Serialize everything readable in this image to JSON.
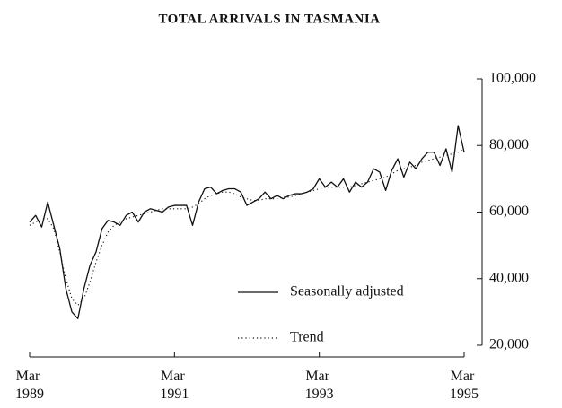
{
  "chart_data": {
    "type": "line",
    "title": "TOTAL ARRIVALS IN TASMANIA",
    "categories": [
      "Mar 1989",
      null,
      null,
      null,
      null,
      null,
      null,
      null,
      null,
      null,
      null,
      null,
      null,
      null,
      null,
      null,
      null,
      null,
      null,
      null,
      null,
      null,
      null,
      null,
      "Mar 1991",
      null,
      null,
      null,
      null,
      null,
      null,
      null,
      null,
      null,
      null,
      null,
      null,
      null,
      null,
      null,
      null,
      null,
      null,
      null,
      null,
      null,
      null,
      null,
      "Mar 1993",
      null,
      null,
      null,
      null,
      null,
      null,
      null,
      null,
      null,
      null,
      null,
      null,
      null,
      null,
      null,
      null,
      null,
      null,
      null,
      null,
      null,
      null,
      null,
      "Mar 1995"
    ],
    "series": [
      {
        "name": "Seasonally adjusted",
        "color": "#111111",
        "style": "solid",
        "values": [
          57000,
          59000,
          55500,
          63000,
          56000,
          49000,
          37000,
          30000,
          28000,
          37000,
          44000,
          48000,
          55000,
          57500,
          57000,
          56000,
          59000,
          60000,
          57000,
          60000,
          61000,
          60500,
          60000,
          61500,
          62000,
          62000,
          62000,
          56000,
          63000,
          67000,
          67500,
          65500,
          66500,
          67000,
          67000,
          66000,
          62000,
          63000,
          64000,
          66000,
          64000,
          65000,
          64000,
          65000,
          65500,
          65500,
          66000,
          67000,
          70000,
          67500,
          69000,
          67500,
          70000,
          66000,
          69000,
          67500,
          69000,
          73000,
          72000,
          66500,
          72500,
          76000,
          70500,
          75000,
          73000,
          76000,
          78000,
          78000,
          74000,
          79000,
          72000,
          86000,
          78000
        ]
      },
      {
        "name": "Trend",
        "color": "#111111",
        "style": "dotted",
        "values": [
          56000,
          57000,
          58000,
          58000,
          55000,
          48000,
          40000,
          34000,
          32000,
          34000,
          39000,
          45000,
          50000,
          54000,
          56000,
          57000,
          58000,
          58500,
          59000,
          59500,
          60000,
          60500,
          61000,
          61000,
          61000,
          61000,
          61000,
          61500,
          62500,
          64000,
          65000,
          65500,
          66000,
          66000,
          65500,
          64500,
          64000,
          63500,
          63500,
          64000,
          64000,
          64000,
          64500,
          64500,
          65000,
          65500,
          66000,
          66500,
          67000,
          67500,
          67500,
          67500,
          67500,
          67500,
          68000,
          68500,
          69000,
          69500,
          70000,
          70500,
          71500,
          72500,
          73000,
          73500,
          74000,
          75000,
          75500,
          76000,
          76500,
          77000,
          77500,
          78000,
          79000
        ]
      }
    ],
    "ylim": [
      20000,
      100000
    ],
    "yticks": [
      {
        "value": 20000,
        "label": "20,000"
      },
      {
        "value": 40000,
        "label": "40,000"
      },
      {
        "value": 60000,
        "label": "60,000"
      },
      {
        "value": 80000,
        "label": "80,000"
      },
      {
        "value": 100000,
        "label": "100,000"
      }
    ],
    "y_axis_side": "right",
    "legend": "bottom-right",
    "grid": false
  }
}
